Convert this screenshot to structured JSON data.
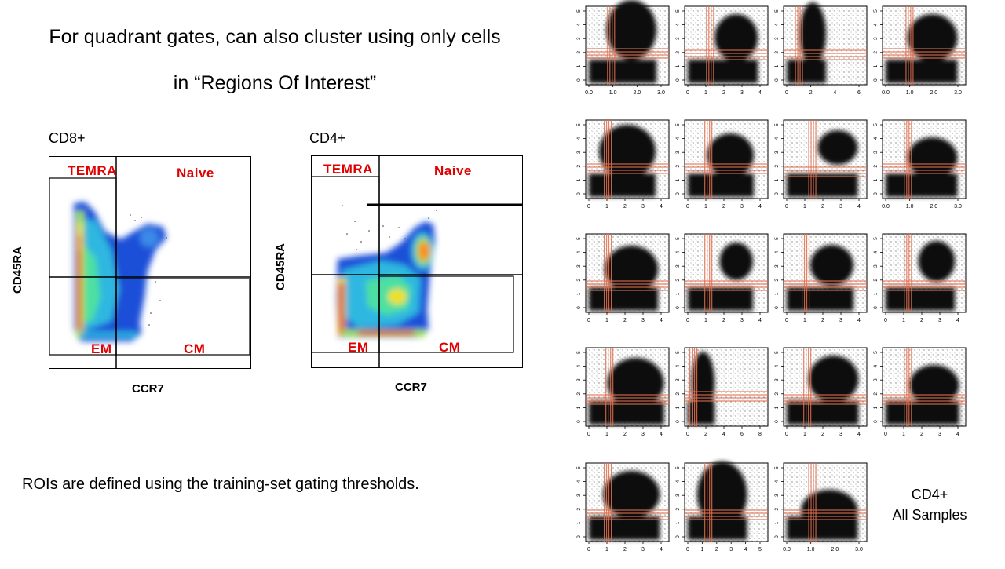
{
  "slide": {
    "title_line1": "For quadrant gates, can also cluster using only cells",
    "title_line2": "in “Regions Of Interest”",
    "note": "ROIs are defined using the training-set gating thresholds."
  },
  "panels": [
    {
      "id": "cd8",
      "title": "CD8+",
      "ylabel": "CD45RA",
      "xlabel": "CCR7",
      "gates": {
        "top_left": "TEMRA",
        "top_right": "Naive",
        "bottom_left": "EM",
        "bottom_right": "CM"
      }
    },
    {
      "id": "cd4",
      "title": "CD4+",
      "ylabel": "CD45RA",
      "xlabel": "CCR7",
      "gates": {
        "top_left": "TEMRA",
        "top_right": "Naive",
        "bottom_left": "EM",
        "bottom_right": "CM"
      }
    }
  ],
  "grid": {
    "caption_line1": "CD4+",
    "caption_line2": "All Samples",
    "gate_color": "#e07050",
    "y_ticks": [
      "0",
      "1",
      "2",
      "3",
      "4",
      "5"
    ],
    "x_tick_sets": [
      [
        "0.0",
        "1.0",
        "2.0",
        "3.0"
      ],
      [
        "0",
        "1",
        "2",
        "3",
        "4"
      ],
      [
        "0",
        "2",
        "4",
        "6"
      ],
      [
        "0.0",
        "1.0",
        "2.0",
        "3.0"
      ],
      [
        "0",
        "2",
        "4",
        "6",
        "8"
      ],
      [
        "0",
        "1",
        "2",
        "3",
        "4",
        "5"
      ],
      [
        "0.0",
        "1.0",
        "2.0",
        "3.0"
      ]
    ]
  }
}
